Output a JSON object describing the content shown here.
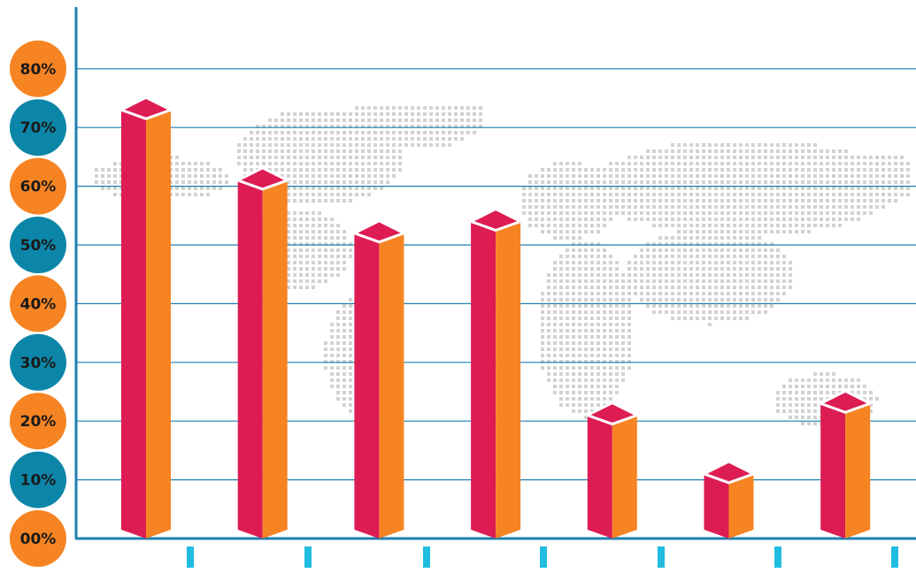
{
  "chart_data": {
    "type": "bar",
    "title": "",
    "xlabel": "",
    "ylabel": "",
    "categories": [
      "",
      "",
      "",
      "",
      "",
      "",
      ""
    ],
    "values": [
      73,
      61,
      52,
      54,
      21,
      11,
      23
    ],
    "ylim": [
      0,
      80
    ],
    "y_ticks": [
      "00%",
      "10%",
      "20%",
      "30%",
      "40%",
      "50%",
      "60%",
      "70%",
      "80%"
    ],
    "grid": true,
    "background": "world-map-dot-pattern",
    "colors": {
      "bar_front": "#dd1c54",
      "bar_side": "#f68423",
      "bar_top": "#dd1c54",
      "tick_orange": "#f68423",
      "tick_teal": "#0c86a8",
      "grid": "#1f7fb0",
      "x_tick_marks": "#21bde0",
      "map_dots": "#d2d2d2"
    }
  }
}
